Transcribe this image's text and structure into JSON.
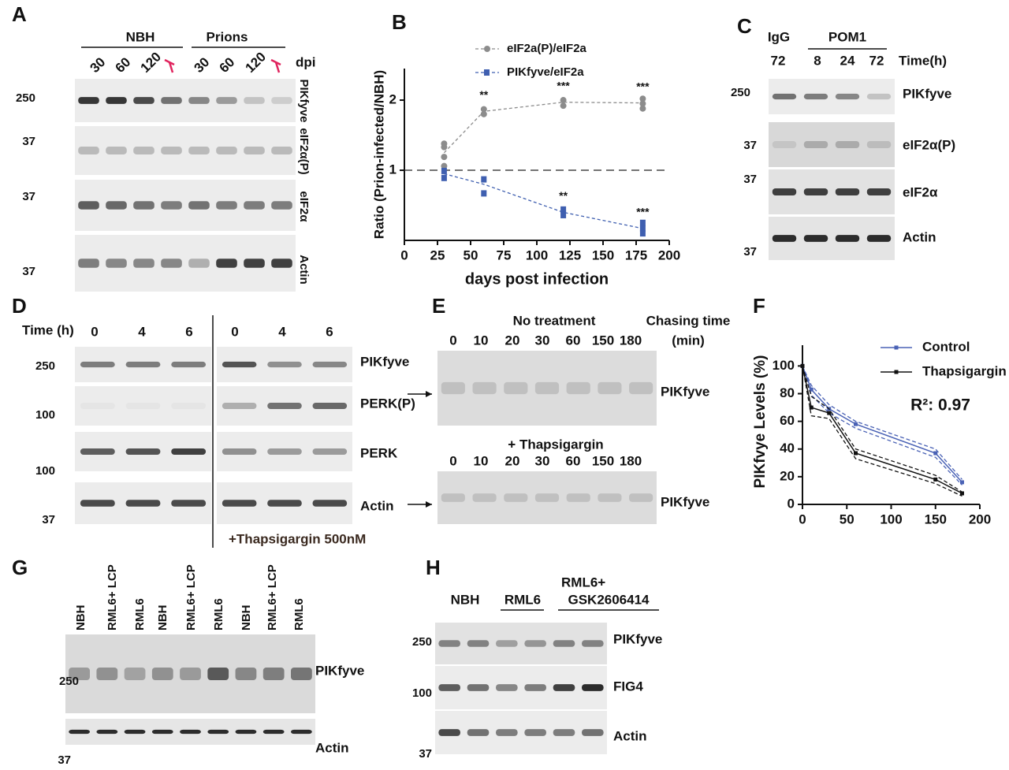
{
  "panels": {
    "A": {
      "letter": "A",
      "groups": [
        "NBH",
        "Prions"
      ],
      "lanes": [
        "30",
        "60",
        "120",
        null,
        "30",
        "60",
        "120",
        null
      ],
      "lane_unit": "dpi",
      "markers": [
        "250",
        "37",
        "37",
        "37"
      ],
      "rows": [
        "PIKfyve",
        "eIF2α(P)",
        "eIF2α",
        "Actin"
      ]
    },
    "B": {
      "letter": "B"
    },
    "C": {
      "letter": "C",
      "groups": [
        "IgG",
        "POM1"
      ],
      "lanes": [
        "72",
        "8",
        "24",
        "72"
      ],
      "lane_unit": "Time(h)",
      "markers": [
        "250",
        "37",
        "37",
        "37"
      ],
      "rows": [
        "PIKfyve",
        "eIF2α(P)",
        "eIF2α",
        "Actin"
      ]
    },
    "D": {
      "letter": "D",
      "lane_unit": "Time (h)",
      "lanes": [
        "0",
        "4",
        "6",
        "0",
        "4",
        "6"
      ],
      "markers": [
        "250",
        "100",
        "100",
        "37"
      ],
      "rows": [
        "PIKfyve",
        "PERK(P)",
        "PERK",
        "Actin"
      ],
      "treatment": "+Thapsigargin 500nM"
    },
    "E": {
      "letter": "E",
      "chase_label": "Chasing time",
      "chase_unit": "(min)",
      "blots": [
        {
          "condition": "No treatment",
          "lanes": [
            "0",
            "10",
            "20",
            "30",
            "60",
            "150",
            "180"
          ],
          "row": "PIKfyve"
        },
        {
          "condition": "+ Thapsigargin",
          "lanes": [
            "0",
            "10",
            "20",
            "30",
            "60",
            "150",
            "180"
          ],
          "row": "PIKfyve"
        }
      ]
    },
    "F": {
      "letter": "F"
    },
    "G": {
      "letter": "G",
      "lanes": [
        "NBH",
        "RML6+ LCP",
        "RML6",
        "NBH",
        "RML6+ LCP",
        "RML6",
        "NBH",
        "RML6+ LCP",
        "RML6"
      ],
      "markers": [
        "250",
        "37"
      ],
      "rows": [
        "PIKfyve",
        "Actin"
      ]
    },
    "H": {
      "letter": "H",
      "groups": [
        "NBH",
        "RML6",
        "RML6+",
        "GSK2606414"
      ],
      "markers": [
        "250",
        "100",
        "37"
      ],
      "rows": [
        "PIKfyve",
        "FIG4",
        "Actin"
      ]
    }
  },
  "chart_data": [
    {
      "type": "scatter",
      "xlabel": "days post infection",
      "ylabel": "Ratio (Prion-infected/NBH)",
      "xlim": [
        0,
        200
      ],
      "xticks": [
        0,
        25,
        50,
        75,
        100,
        125,
        150,
        175,
        200
      ],
      "ylim": [
        0,
        2.45
      ],
      "yticks": [
        1,
        2
      ],
      "reference_line": 1,
      "series": [
        {
          "name": "eIF2a(P)/eIF2a",
          "color": "#8c8c8c",
          "marker": "circle",
          "x": [
            30,
            30,
            30,
            30,
            60,
            60,
            120,
            120,
            180,
            180,
            180
          ],
          "values": [
            1.38,
            1.33,
            1.19,
            1.06,
            1.87,
            1.8,
            2.0,
            1.92,
            2.02,
            1.95,
            1.88
          ],
          "fit_x": [
            30,
            60,
            120,
            180
          ],
          "fit_values": [
            1.25,
            1.84,
            1.97,
            1.96
          ],
          "annotations": [
            null,
            "**",
            "***",
            "***"
          ]
        },
        {
          "name": "PIKfyve/eIF2a",
          "color": "#3f5fb0",
          "marker": "square",
          "x": [
            30,
            30,
            60,
            60,
            120,
            120,
            180,
            180,
            180
          ],
          "values": [
            0.99,
            0.89,
            0.87,
            0.67,
            0.44,
            0.36,
            0.25,
            0.17,
            0.1
          ],
          "fit_x": [
            30,
            60,
            120,
            180
          ],
          "fit_values": [
            0.95,
            0.8,
            0.4,
            0.17
          ],
          "annotations": [
            null,
            null,
            "**",
            "***"
          ]
        }
      ]
    },
    {
      "type": "line",
      "ylabel": "PIKfvye Levels (%)",
      "xlim": [
        0,
        200
      ],
      "xticks": [
        0,
        50,
        100,
        150,
        200
      ],
      "ylim": [
        0,
        115
      ],
      "yticks": [
        0,
        20,
        40,
        60,
        80,
        100
      ],
      "annotation": "R²: 0.97",
      "legend": "top-right",
      "series": [
        {
          "name": "Control",
          "color": "#4a62b5",
          "x": [
            0,
            10,
            30,
            60,
            150,
            180
          ],
          "values": [
            100,
            83,
            69,
            58,
            37,
            16
          ],
          "upper": [
            100,
            86,
            72,
            60,
            40,
            18
          ],
          "lower": [
            100,
            79,
            66,
            55,
            34,
            14
          ]
        },
        {
          "name": "Thapsigargin",
          "color": "#111111",
          "x": [
            0,
            10,
            30,
            60,
            150,
            180
          ],
          "values": [
            100,
            70,
            66,
            37,
            18,
            8
          ],
          "upper": [
            100,
            78,
            69,
            40,
            21,
            9
          ],
          "lower": [
            100,
            64,
            62,
            33,
            15,
            6
          ]
        }
      ]
    }
  ]
}
